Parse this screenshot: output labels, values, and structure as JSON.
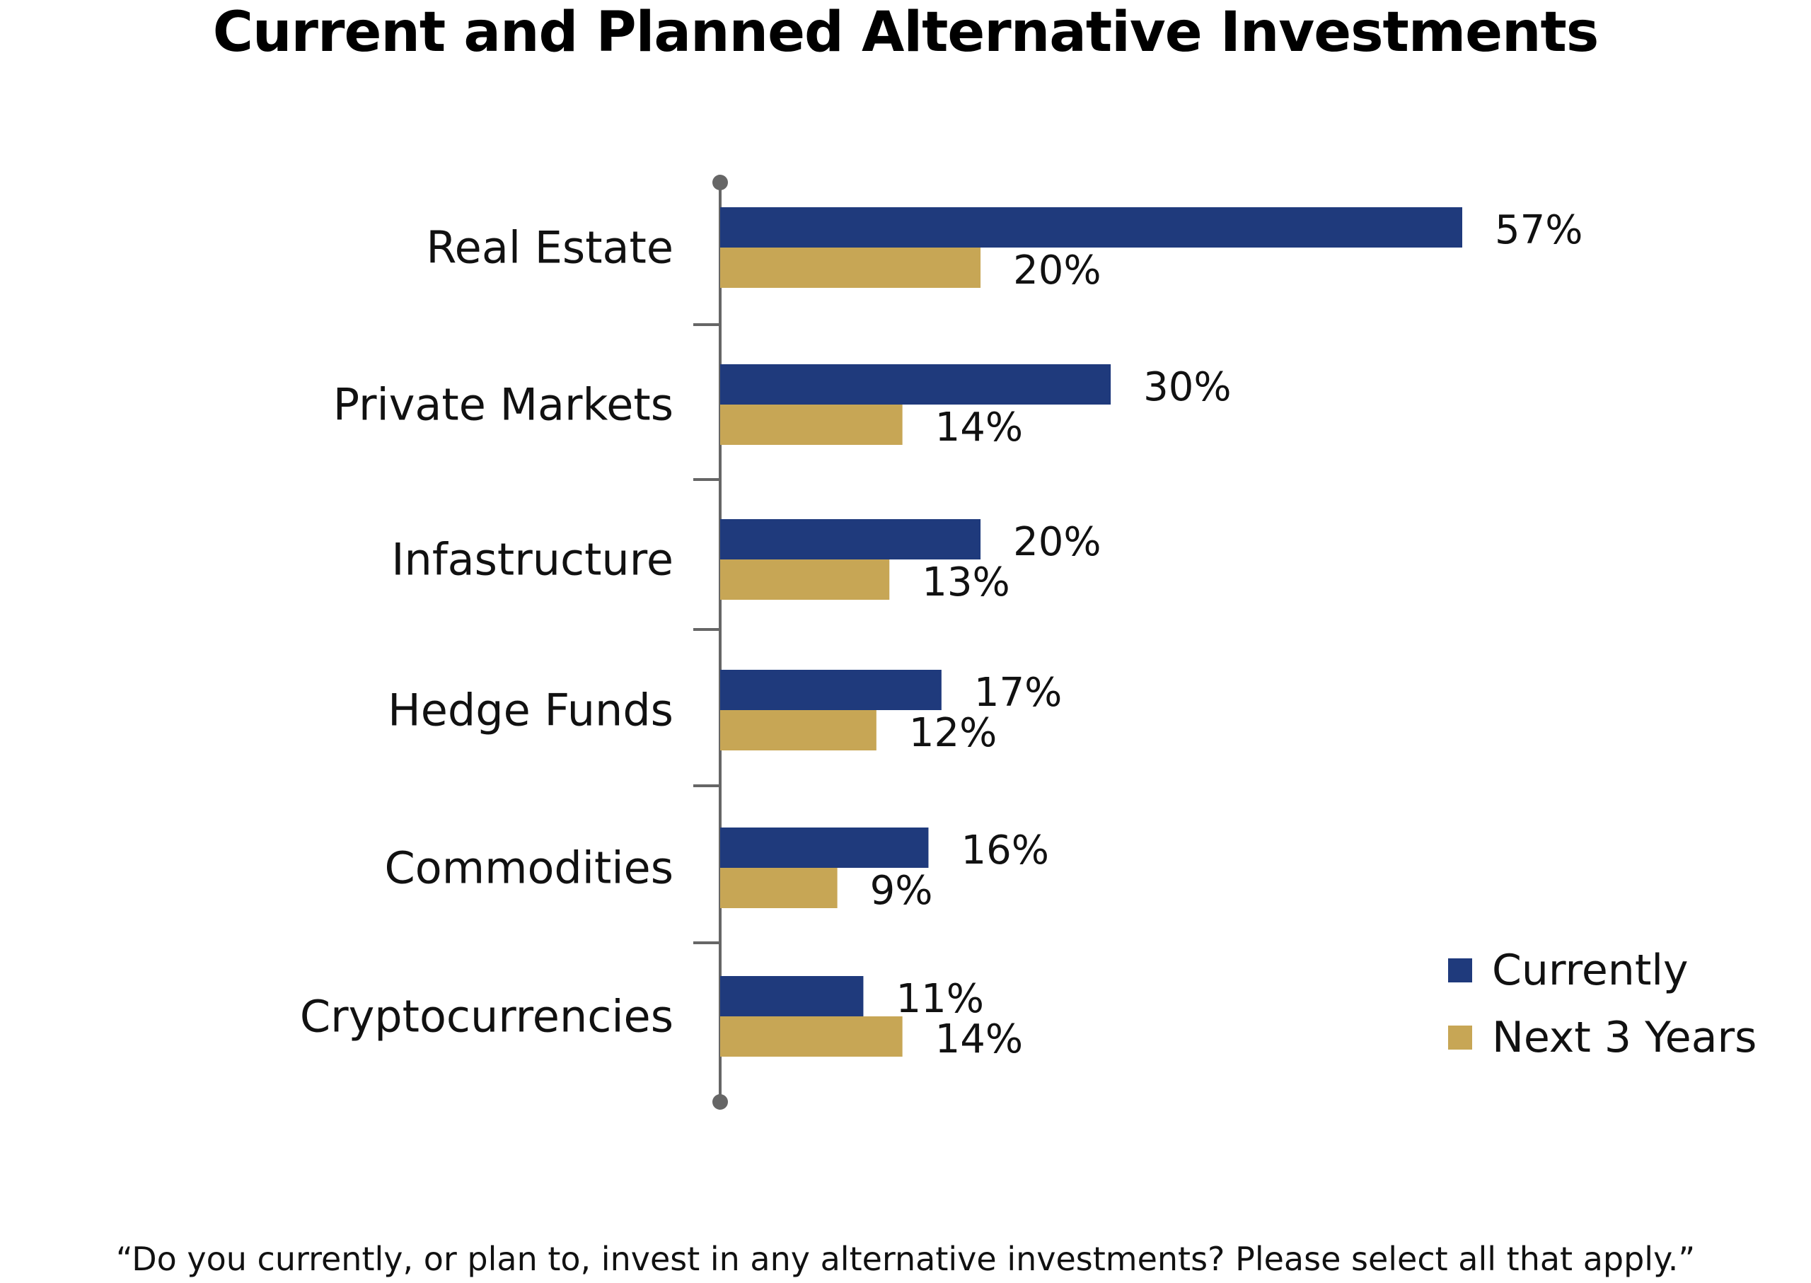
{
  "chart_data": {
    "type": "bar",
    "orientation": "horizontal",
    "title": "Current and Planned Alternative Investments",
    "footnote": "“Do you currently, or plan to, invest in any alternative investments? Please select all that apply.”",
    "categories": [
      "Real Estate",
      "Private Markets",
      "Infastructure",
      "Hedge Funds",
      "Commodities",
      "Cryptocurrencies"
    ],
    "series": [
      {
        "name": "Currently",
        "color": "#1f3a7c",
        "values": [
          57,
          30,
          20,
          17,
          16,
          11
        ],
        "labels": [
          "57%",
          "30%",
          "20%",
          "17%",
          "16%",
          "11%"
        ]
      },
      {
        "name": "Next 3 Years",
        "color": "#c7a655",
        "values": [
          20,
          14,
          13,
          12,
          9,
          14
        ],
        "labels": [
          "20%",
          "14%",
          "13%",
          "12%",
          "9%",
          "14%"
        ]
      }
    ],
    "xlim": [
      0,
      60
    ],
    "grid": false,
    "legend": "bottom-right",
    "axis_color": "#666666"
  }
}
